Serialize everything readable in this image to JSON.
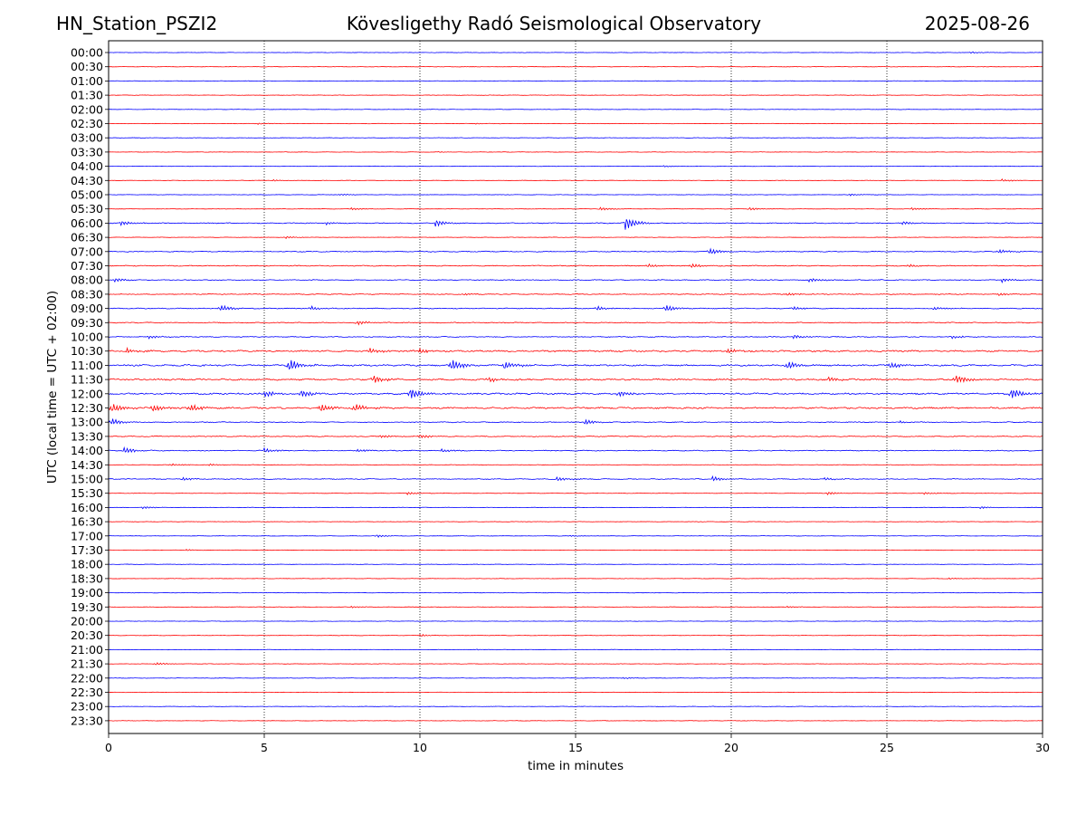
{
  "header": {
    "station": "HN_Station_PSZI2",
    "observatory": "Kövesligethy Radó Seismological Observatory",
    "date": "2025-08-26"
  },
  "chart_data": {
    "type": "line",
    "title": "Kövesligethy Radó Seismological Observatory",
    "xlabel": "time in minutes",
    "ylabel": "UTC (local time = UTC + 02:00)",
    "xlim": [
      0,
      30
    ],
    "xticks": [
      0,
      5,
      10,
      15,
      20,
      25,
      30
    ],
    "vertical_gridlines_at": [
      5,
      10,
      15,
      20,
      25
    ],
    "grid": "vertical dotted",
    "trace_colors": [
      "#0000ff",
      "#ff0000"
    ],
    "color_rule": "rows alternate blue (on the hour) and red (on the half hour)",
    "rows": [
      {
        "label": "00:00",
        "activity": "low",
        "events": [
          {
            "t": 27.7,
            "amp": 0.2
          }
        ]
      },
      {
        "label": "00:30",
        "activity": "low",
        "events": []
      },
      {
        "label": "01:00",
        "activity": "low",
        "events": []
      },
      {
        "label": "01:30",
        "activity": "low",
        "events": []
      },
      {
        "label": "02:00",
        "activity": "low",
        "events": []
      },
      {
        "label": "02:30",
        "activity": "low",
        "events": [
          {
            "t": 4.8,
            "amp": 0.2
          },
          {
            "t": 11.8,
            "amp": 0.15
          }
        ]
      },
      {
        "label": "03:00",
        "activity": "low",
        "events": []
      },
      {
        "label": "03:30",
        "activity": "low",
        "events": [
          {
            "t": 10.6,
            "amp": 0.12
          }
        ]
      },
      {
        "label": "04:00",
        "activity": "low",
        "events": [
          {
            "t": 17.8,
            "amp": 0.2
          }
        ]
      },
      {
        "label": "04:30",
        "activity": "low",
        "events": [
          {
            "t": 5.3,
            "amp": 0.2
          },
          {
            "t": 28.7,
            "amp": 0.3
          }
        ]
      },
      {
        "label": "05:00",
        "activity": "low",
        "events": [
          {
            "t": 7.4,
            "amp": 0.2
          },
          {
            "t": 23.8,
            "amp": 0.25
          }
        ]
      },
      {
        "label": "05:30",
        "activity": "low",
        "events": [
          {
            "t": 7.8,
            "amp": 0.3
          },
          {
            "t": 15.8,
            "amp": 0.4
          },
          {
            "t": 20.6,
            "amp": 0.35
          },
          {
            "t": 25.8,
            "amp": 0.3
          }
        ]
      },
      {
        "label": "06:00",
        "activity": "medium",
        "events": [
          {
            "t": 0.4,
            "amp": 0.6
          },
          {
            "t": 7.0,
            "amp": 0.4
          },
          {
            "t": 10.5,
            "amp": 0.9
          },
          {
            "t": 16.6,
            "amp": 1.7
          },
          {
            "t": 25.5,
            "amp": 0.4
          }
        ]
      },
      {
        "label": "06:30",
        "activity": "low",
        "events": [
          {
            "t": 5.7,
            "amp": 0.25
          }
        ]
      },
      {
        "label": "07:00",
        "activity": "medium",
        "events": [
          {
            "t": 19.3,
            "amp": 0.8
          },
          {
            "t": 28.6,
            "amp": 0.5
          }
        ]
      },
      {
        "label": "07:30",
        "activity": "medium",
        "events": [
          {
            "t": 17.3,
            "amp": 0.45
          },
          {
            "t": 18.7,
            "amp": 0.6
          },
          {
            "t": 25.7,
            "amp": 0.3
          }
        ]
      },
      {
        "label": "08:00",
        "activity": "medium",
        "events": [
          {
            "t": 0.2,
            "amp": 0.5
          },
          {
            "t": 22.5,
            "amp": 0.5
          },
          {
            "t": 28.7,
            "amp": 0.55
          }
        ]
      },
      {
        "label": "08:30",
        "activity": "medium",
        "events": [
          {
            "t": 11.4,
            "amp": 0.3
          },
          {
            "t": 21.8,
            "amp": 0.4
          },
          {
            "t": 28.6,
            "amp": 0.4
          }
        ]
      },
      {
        "label": "09:00",
        "activity": "medium",
        "events": [
          {
            "t": 3.6,
            "amp": 0.8
          },
          {
            "t": 6.5,
            "amp": 0.5
          },
          {
            "t": 15.7,
            "amp": 0.5
          },
          {
            "t": 17.9,
            "amp": 0.8
          },
          {
            "t": 22.0,
            "amp": 0.4
          },
          {
            "t": 26.5,
            "amp": 0.4
          }
        ]
      },
      {
        "label": "09:30",
        "activity": "medium",
        "events": [
          {
            "t": 8.0,
            "amp": 0.5
          }
        ]
      },
      {
        "label": "10:00",
        "activity": "medium",
        "events": [
          {
            "t": 1.3,
            "amp": 0.4
          },
          {
            "t": 22.0,
            "amp": 0.5
          },
          {
            "t": 27.1,
            "amp": 0.4
          }
        ]
      },
      {
        "label": "10:30",
        "activity": "high",
        "events": [
          {
            "t": 0.6,
            "amp": 0.6
          },
          {
            "t": 8.4,
            "amp": 0.6
          },
          {
            "t": 10.0,
            "amp": 0.55
          },
          {
            "t": 19.9,
            "amp": 0.55
          }
        ]
      },
      {
        "label": "11:00",
        "activity": "high",
        "events": [
          {
            "t": 5.8,
            "amp": 1.6
          },
          {
            "t": 11.0,
            "amp": 1.6
          },
          {
            "t": 12.7,
            "amp": 1.2
          },
          {
            "t": 21.8,
            "amp": 1.0
          },
          {
            "t": 25.1,
            "amp": 0.9
          }
        ]
      },
      {
        "label": "11:30",
        "activity": "high",
        "events": [
          {
            "t": 8.5,
            "amp": 1.0
          },
          {
            "t": 12.2,
            "amp": 0.7
          },
          {
            "t": 23.1,
            "amp": 0.6
          },
          {
            "t": 27.2,
            "amp": 1.2
          }
        ]
      },
      {
        "label": "12:00",
        "activity": "high",
        "events": [
          {
            "t": 5.0,
            "amp": 0.9
          },
          {
            "t": 6.2,
            "amp": 0.9
          },
          {
            "t": 9.7,
            "amp": 1.5
          },
          {
            "t": 16.4,
            "amp": 0.6
          },
          {
            "t": 29.0,
            "amp": 1.4
          }
        ]
      },
      {
        "label": "12:30",
        "activity": "high",
        "events": [
          {
            "t": 0.1,
            "amp": 1.2
          },
          {
            "t": 1.4,
            "amp": 1.0
          },
          {
            "t": 2.6,
            "amp": 1.0
          },
          {
            "t": 6.8,
            "amp": 1.1
          },
          {
            "t": 7.9,
            "amp": 1.0
          }
        ]
      },
      {
        "label": "13:00",
        "activity": "medium",
        "events": [
          {
            "t": 0.1,
            "amp": 0.9
          },
          {
            "t": 15.3,
            "amp": 0.7
          },
          {
            "t": 25.4,
            "amp": 0.3
          }
        ]
      },
      {
        "label": "13:30",
        "activity": "medium",
        "events": [
          {
            "t": 8.7,
            "amp": 0.45
          },
          {
            "t": 10.0,
            "amp": 0.5
          }
        ]
      },
      {
        "label": "14:00",
        "activity": "medium",
        "events": [
          {
            "t": 0.5,
            "amp": 0.8
          },
          {
            "t": 5.0,
            "amp": 0.6
          },
          {
            "t": 8.0,
            "amp": 0.35
          },
          {
            "t": 10.7,
            "amp": 0.4
          }
        ]
      },
      {
        "label": "14:30",
        "activity": "low",
        "events": [
          {
            "t": 2.0,
            "amp": 0.3
          },
          {
            "t": 3.2,
            "amp": 0.3
          }
        ]
      },
      {
        "label": "15:00",
        "activity": "medium",
        "events": [
          {
            "t": 2.4,
            "amp": 0.4
          },
          {
            "t": 14.4,
            "amp": 0.55
          },
          {
            "t": 19.4,
            "amp": 0.6
          },
          {
            "t": 23.0,
            "amp": 0.35
          }
        ]
      },
      {
        "label": "15:30",
        "activity": "low",
        "events": [
          {
            "t": 9.6,
            "amp": 0.35
          },
          {
            "t": 23.1,
            "amp": 0.4
          },
          {
            "t": 26.2,
            "amp": 0.3
          }
        ]
      },
      {
        "label": "16:00",
        "activity": "low",
        "events": [
          {
            "t": 1.1,
            "amp": 0.3
          },
          {
            "t": 28.0,
            "amp": 0.25
          }
        ]
      },
      {
        "label": "16:30",
        "activity": "low",
        "events": []
      },
      {
        "label": "17:00",
        "activity": "low",
        "events": [
          {
            "t": 8.6,
            "amp": 0.35
          },
          {
            "t": 14.8,
            "amp": 0.15
          }
        ]
      },
      {
        "label": "17:30",
        "activity": "low",
        "events": [
          {
            "t": 2.5,
            "amp": 0.2
          }
        ]
      },
      {
        "label": "18:00",
        "activity": "low",
        "events": []
      },
      {
        "label": "18:30",
        "activity": "low",
        "events": [
          {
            "t": 27.0,
            "amp": 0.2
          }
        ]
      },
      {
        "label": "19:00",
        "activity": "low",
        "events": [
          {
            "t": 21.8,
            "amp": 0.15
          }
        ]
      },
      {
        "label": "19:30",
        "activity": "low",
        "events": [
          {
            "t": 7.8,
            "amp": 0.2
          },
          {
            "t": 21.8,
            "amp": 0.2
          }
        ]
      },
      {
        "label": "20:00",
        "activity": "low",
        "events": []
      },
      {
        "label": "20:30",
        "activity": "low",
        "events": [
          {
            "t": 10.0,
            "amp": 0.3
          }
        ]
      },
      {
        "label": "21:00",
        "activity": "low",
        "events": [
          {
            "t": 11.8,
            "amp": 0.15
          }
        ]
      },
      {
        "label": "21:30",
        "activity": "low",
        "events": [
          {
            "t": 1.5,
            "amp": 0.35
          }
        ]
      },
      {
        "label": "22:00",
        "activity": "low",
        "events": [
          {
            "t": 16.5,
            "amp": 0.2
          }
        ]
      },
      {
        "label": "22:30",
        "activity": "low",
        "events": []
      },
      {
        "label": "23:00",
        "activity": "low",
        "events": []
      },
      {
        "label": "23:30",
        "activity": "low",
        "events": []
      }
    ]
  }
}
